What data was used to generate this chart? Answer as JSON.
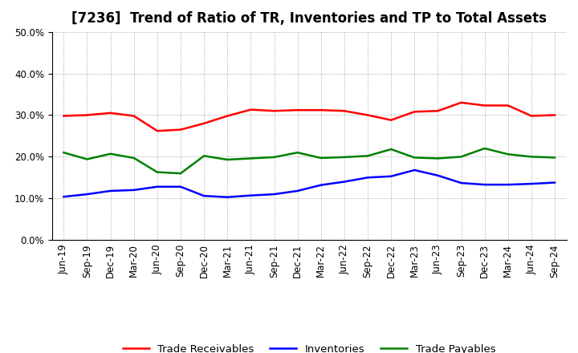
{
  "title": "[7236]  Trend of Ratio of TR, Inventories and TP to Total Assets",
  "x_labels": [
    "Jun-19",
    "Sep-19",
    "Dec-19",
    "Mar-20",
    "Jun-20",
    "Sep-20",
    "Dec-20",
    "Mar-21",
    "Jun-21",
    "Sep-21",
    "Dec-21",
    "Mar-22",
    "Jun-22",
    "Sep-22",
    "Dec-22",
    "Mar-23",
    "Jun-23",
    "Sep-23",
    "Dec-23",
    "Mar-24",
    "Jun-24",
    "Sep-24"
  ],
  "trade_receivables": [
    0.298,
    0.3,
    0.305,
    0.298,
    0.262,
    0.265,
    0.28,
    0.298,
    0.313,
    0.31,
    0.312,
    0.312,
    0.31,
    0.3,
    0.288,
    0.308,
    0.31,
    0.33,
    0.323,
    0.323,
    0.298,
    0.3
  ],
  "inventories": [
    0.104,
    0.11,
    0.118,
    0.12,
    0.128,
    0.128,
    0.106,
    0.103,
    0.107,
    0.11,
    0.118,
    0.132,
    0.14,
    0.15,
    0.153,
    0.168,
    0.155,
    0.137,
    0.133,
    0.133,
    0.135,
    0.138
  ],
  "trade_payables": [
    0.21,
    0.194,
    0.207,
    0.197,
    0.163,
    0.16,
    0.202,
    0.193,
    0.196,
    0.199,
    0.21,
    0.197,
    0.199,
    0.202,
    0.218,
    0.198,
    0.196,
    0.2,
    0.22,
    0.206,
    0.2,
    0.198
  ],
  "colors": {
    "trade_receivables": "#FF0000",
    "inventories": "#0000FF",
    "trade_payables": "#008000"
  },
  "legend_labels": [
    "Trade Receivables",
    "Inventories",
    "Trade Payables"
  ],
  "ylim": [
    0.0,
    0.5
  ],
  "yticks": [
    0.0,
    0.1,
    0.2,
    0.3,
    0.4,
    0.5
  ],
  "background_color": "#FFFFFF",
  "grid_color": "#888888",
  "title_fontsize": 12,
  "axis_fontsize": 8.5,
  "legend_fontsize": 9.5,
  "line_width": 1.8
}
